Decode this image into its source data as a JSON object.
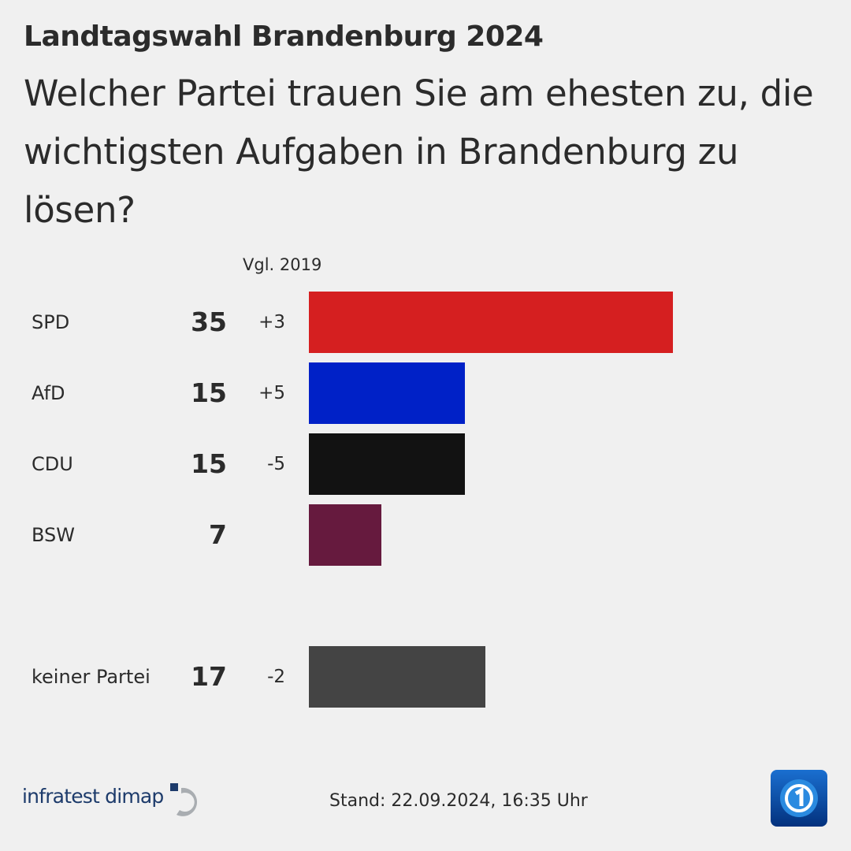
{
  "header": {
    "kicker": "Landtagswahl Brandenburg 2024",
    "question": "Welcher Partei trauen Sie am ehesten zu, die wichtigsten Aufgaben in Brandenburg zu lösen?"
  },
  "chart_data": {
    "type": "bar",
    "orientation": "horizontal",
    "change_header": "Vgl. 2019",
    "categories": [
      "SPD",
      "AfD",
      "CDU",
      "BSW",
      "keiner Partei"
    ],
    "values": [
      35,
      15,
      15,
      7,
      17
    ],
    "changes": [
      "+3",
      "+5",
      "-5",
      "",
      "-2"
    ],
    "colors": [
      "#d51f20",
      "#0021c7",
      "#121212",
      "#661a3e",
      "#444444"
    ]
  },
  "footer": {
    "source_logo": "infratest dimap",
    "stand": "Stand:  22.09.2024, 16:35 Uhr",
    "broadcaster_logo": "tagesschau"
  }
}
